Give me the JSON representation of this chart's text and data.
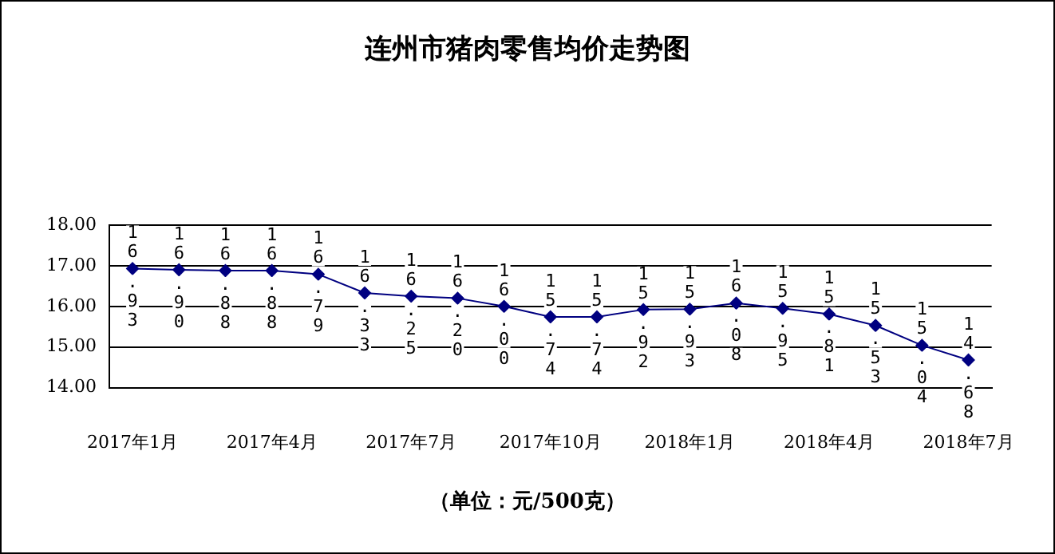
{
  "chart_data": {
    "type": "line",
    "title": "连州市猪肉零售均价走势图",
    "xlabel": "（单位：元/500克）",
    "categories": [
      "2017年1月",
      null,
      null,
      "2017年4月",
      null,
      null,
      "2017年7月",
      null,
      null,
      "2017年10月",
      null,
      null,
      "2018年1月",
      null,
      null,
      "2018年4月",
      null,
      null,
      "2018年7月"
    ],
    "series": [
      {
        "color": "#000080",
        "values": [
          16.93,
          16.9,
          16.88,
          16.88,
          16.79,
          16.33,
          16.25,
          16.2,
          16.0,
          15.74,
          15.74,
          15.92,
          15.93,
          16.08,
          15.95,
          15.81,
          15.53,
          15.04,
          14.68
        ],
        "value_labels": [
          "16.93",
          "16.90",
          "16.88",
          "16.88",
          "16.79",
          "16.33",
          "16.25",
          "16.20",
          "16.00",
          "15.74",
          "15.74",
          "15.92",
          "15.93",
          "16.08",
          "15.95",
          "15.81",
          "15.53",
          "15.04",
          "14.68"
        ]
      }
    ],
    "ylim": [
      14,
      18
    ],
    "yticks": [
      {
        "value": 14,
        "label": "14.00"
      },
      {
        "value": 15,
        "label": "15.00"
      },
      {
        "value": 16,
        "label": "16.00"
      },
      {
        "value": 17,
        "label": "17.00"
      },
      {
        "value": 18,
        "label": "18.00"
      }
    ],
    "grid": "y",
    "legend": false,
    "marker": "diamond",
    "line_style": "solid"
  }
}
